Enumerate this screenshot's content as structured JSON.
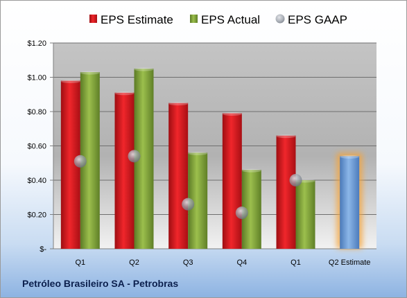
{
  "legend": {
    "estimate": "EPS Estimate",
    "actual": "EPS Actual",
    "gaap": "EPS GAAP"
  },
  "footer_title": "Petróleo Brasileiro SA - Petrobras",
  "colors": {
    "estimate": "#e01f26",
    "actual": "#8fb042",
    "gaap": "#b0b5be",
    "forward_estimate": "#6f9fd8",
    "forward_glow": "#f6a43a"
  },
  "chart_data": {
    "type": "bar",
    "title": "",
    "xlabel": "",
    "ylabel": "",
    "categories": [
      "Q1",
      "Q2",
      "Q3",
      "Q4",
      "Q1",
      "Q2 Estimate"
    ],
    "ylim": [
      0,
      1.2
    ],
    "yticks": [
      0,
      0.2,
      0.4,
      0.6,
      0.8,
      1.0,
      1.2
    ],
    "ytick_labels": [
      "$-",
      "$0.20",
      "$0.40",
      "$0.60",
      "$0.80",
      "$1.00",
      "$1.20"
    ],
    "grid": true,
    "legend_position": "top",
    "series": [
      {
        "name": "EPS Estimate",
        "kind": "bar",
        "values": [
          0.98,
          0.91,
          0.85,
          0.79,
          0.66,
          0.54
        ]
      },
      {
        "name": "EPS Actual",
        "kind": "bar",
        "values": [
          1.03,
          1.05,
          0.56,
          0.46,
          0.4,
          null
        ]
      },
      {
        "name": "EPS GAAP",
        "kind": "point",
        "values": [
          0.51,
          0.54,
          0.26,
          0.21,
          0.4,
          null
        ]
      }
    ]
  }
}
